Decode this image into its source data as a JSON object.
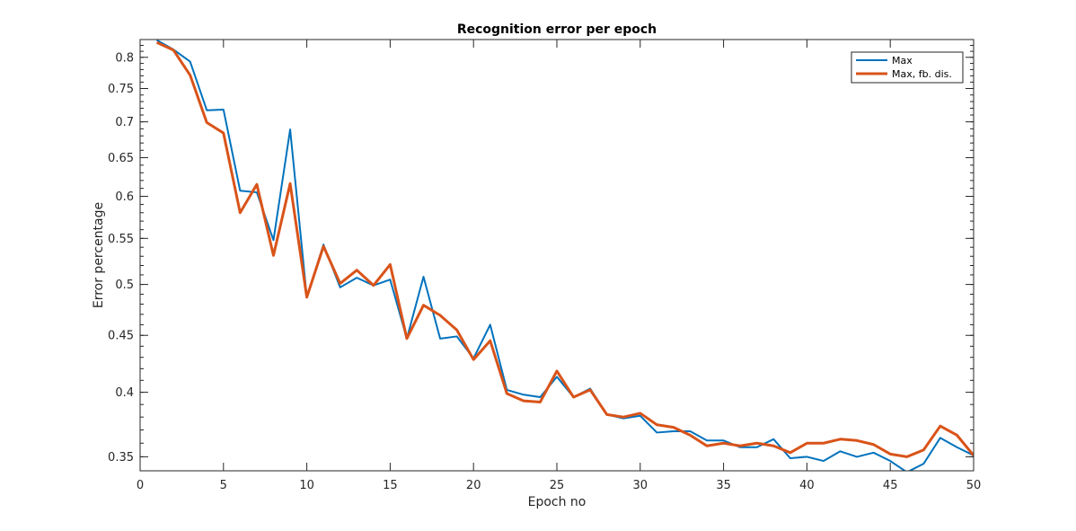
{
  "chart_data": {
    "type": "line",
    "title": "Recognition error per epoch",
    "xlabel": "Epoch no",
    "ylabel": "Error percentage",
    "xlim": [
      0,
      50
    ],
    "ylim": [
      0.34,
      0.83
    ],
    "yscale": "log",
    "xticks": [
      0,
      5,
      10,
      15,
      20,
      25,
      30,
      35,
      40,
      45,
      50
    ],
    "yticks": [
      0.35,
      0.4,
      0.45,
      0.5,
      0.55,
      0.6,
      0.65,
      0.7,
      0.75,
      0.8
    ],
    "ytick_labels": [
      "0.35",
      "0.4",
      "0.45",
      "0.5",
      "0.55",
      "0.6",
      "0.65",
      "0.7",
      "0.75",
      "0.8"
    ],
    "grid": false,
    "legend_position": "top-right",
    "x": [
      1,
      2,
      3,
      4,
      5,
      6,
      7,
      8,
      9,
      10,
      11,
      12,
      13,
      14,
      15,
      16,
      17,
      18,
      19,
      20,
      21,
      22,
      23,
      24,
      25,
      26,
      27,
      28,
      29,
      30,
      31,
      32,
      33,
      34,
      35,
      36,
      37,
      38,
      39,
      40,
      41,
      42,
      43,
      44,
      45,
      46,
      47,
      48,
      49,
      50
    ],
    "series": [
      {
        "name": "Max",
        "color": "#0072bd",
        "linewidth": 2,
        "values": [
          0.829,
          0.813,
          0.793,
          0.717,
          0.718,
          0.607,
          0.605,
          0.548,
          0.689,
          0.487,
          0.543,
          0.497,
          0.507,
          0.499,
          0.505,
          0.447,
          0.508,
          0.447,
          0.449,
          0.429,
          0.46,
          0.402,
          0.398,
          0.396,
          0.413,
          0.396,
          0.403,
          0.382,
          0.379,
          0.381,
          0.368,
          0.369,
          0.369,
          0.362,
          0.362,
          0.357,
          0.357,
          0.363,
          0.349,
          0.35,
          0.347,
          0.354,
          0.35,
          0.353,
          0.347,
          0.339,
          0.345,
          0.364,
          0.357,
          0.351
        ]
      },
      {
        "name": "Max, fb. dis.",
        "color": "#d95319",
        "linewidth": 3,
        "values": [
          0.825,
          0.812,
          0.771,
          0.699,
          0.684,
          0.58,
          0.615,
          0.531,
          0.616,
          0.487,
          0.541,
          0.501,
          0.515,
          0.499,
          0.521,
          0.447,
          0.479,
          0.469,
          0.455,
          0.428,
          0.445,
          0.399,
          0.393,
          0.392,
          0.418,
          0.396,
          0.402,
          0.382,
          0.38,
          0.383,
          0.374,
          0.372,
          0.366,
          0.358,
          0.36,
          0.358,
          0.36,
          0.358,
          0.353,
          0.36,
          0.36,
          0.363,
          0.362,
          0.359,
          0.352,
          0.35,
          0.355,
          0.373,
          0.366,
          0.351
        ]
      }
    ]
  }
}
